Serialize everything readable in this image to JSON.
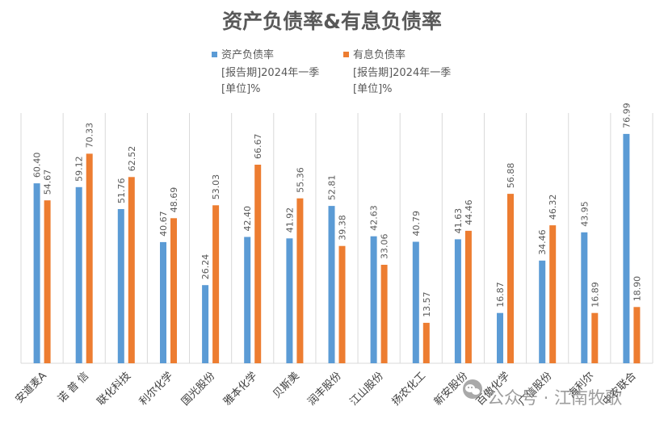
{
  "chart_data": {
    "type": "bar",
    "title": "资产负债率&有息负债率",
    "categories": [
      "安道麦A",
      "诺 普 信",
      "联化科技",
      "利尔化学",
      "国光股份",
      "雅本化学",
      "贝斯美",
      "润丰股份",
      "江山股份",
      "扬农化工",
      "新安股份",
      "百傲化学",
      "广信股份",
      "海利尔",
      "中农联合"
    ],
    "series": [
      {
        "name": "资产负债率",
        "note_lines": [
          "[报告期]2024年一季",
          "[单位]%"
        ],
        "color": "#5b9bd5",
        "values": [
          60.4,
          59.12,
          51.76,
          40.67,
          26.24,
          42.4,
          41.92,
          52.81,
          42.63,
          40.79,
          41.63,
          16.87,
          34.46,
          43.95,
          76.99
        ]
      },
      {
        "name": "有息负债率",
        "note_lines": [
          "[报告期]2024年一季",
          "[单位]%"
        ],
        "color": "#ed7d31",
        "values": [
          54.67,
          70.33,
          62.52,
          48.69,
          53.03,
          66.67,
          55.36,
          39.38,
          33.06,
          13.57,
          44.46,
          56.88,
          46.32,
          16.89,
          18.9
        ]
      }
    ],
    "ylim": [
      0,
      84
    ],
    "grid": "vertical-category-dividers",
    "legend_position": "top"
  },
  "watermark": {
    "icon": "wechat-icon",
    "text": "公众号 · 江南牧歌"
  }
}
